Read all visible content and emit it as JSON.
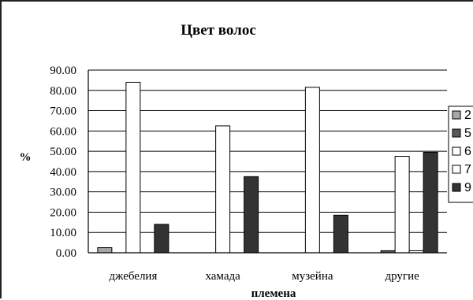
{
  "chart_data": {
    "type": "bar",
    "title": "Цвет волос",
    "xlabel": "племена",
    "ylabel": "%",
    "categories": [
      "джебелия",
      "хамада",
      "музейна",
      "другие"
    ],
    "y_ticks": [
      "0.00",
      "10.00",
      "20.00",
      "30.00",
      "40.00",
      "50.00",
      "60.00",
      "70.00",
      "80.00",
      "90.00"
    ],
    "ylim": [
      0,
      90
    ],
    "grid": true,
    "legend_position": "right",
    "series": [
      {
        "name": "2",
        "color": "#a6a6a6",
        "values": [
          2.5,
          0,
          0,
          0
        ]
      },
      {
        "name": "5",
        "color": "#595959",
        "values": [
          0,
          0,
          0,
          1
        ]
      },
      {
        "name": "6",
        "color": "#ffffff",
        "values": [
          84,
          62.5,
          81.5,
          47.5
        ]
      },
      {
        "name": "7",
        "color": "#ffffff",
        "values": [
          0,
          0,
          0,
          1
        ]
      },
      {
        "name": "9",
        "color": "#333333",
        "values": [
          14,
          37.5,
          18.5,
          49.5
        ]
      }
    ]
  }
}
